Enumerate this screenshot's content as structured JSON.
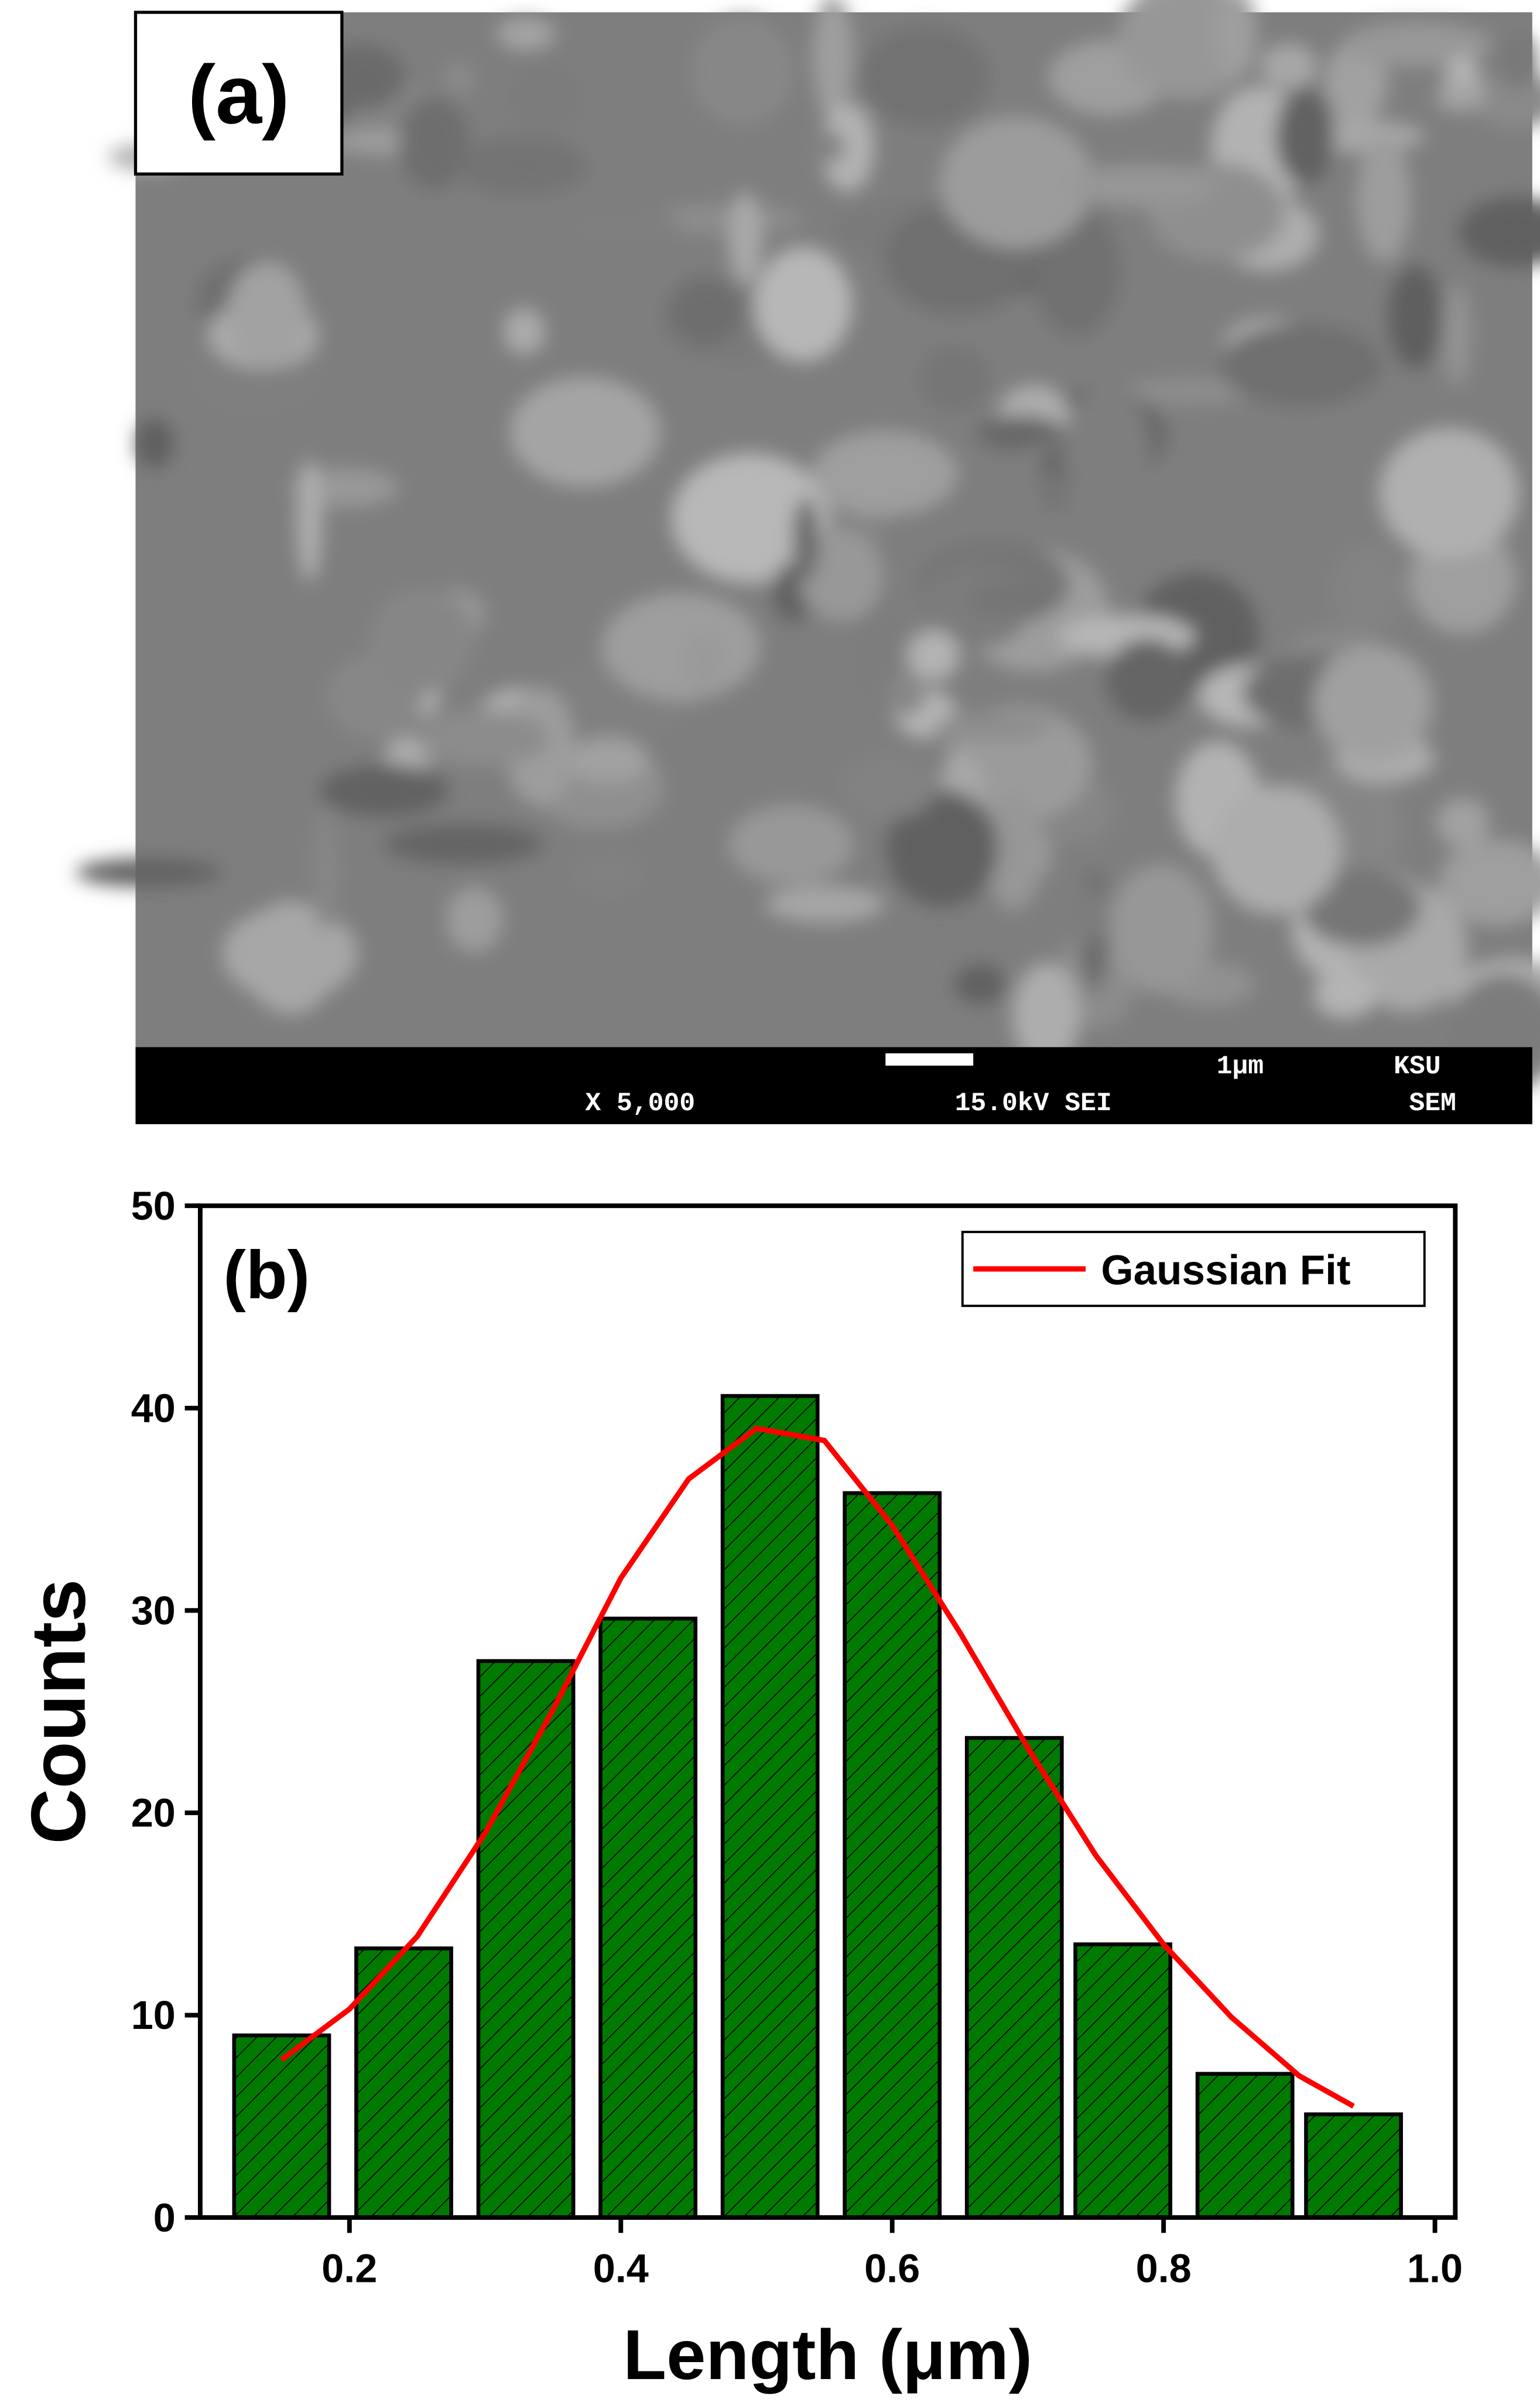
{
  "panel_a": {
    "label": "(a)",
    "scale_bar": "1μm",
    "lab": "KSU",
    "magnification": "X 5,000",
    "voltage": "15.0kV SEI",
    "mode": "SEM"
  },
  "chart_data": {
    "type": "bar",
    "panel_label": "(b)",
    "xlabel": "Length (μm)",
    "ylabel": "Counts",
    "x": [
      0.15,
      0.24,
      0.33,
      0.42,
      0.51,
      0.6,
      0.69,
      0.77,
      0.86,
      0.94
    ],
    "values": [
      9,
      13.3,
      27.5,
      29.6,
      40.6,
      35.8,
      23.7,
      13.5,
      7.1,
      5.1
    ],
    "color": "#007a00",
    "hatch": true,
    "fit": {
      "name": "Gaussian Fit",
      "color": "#ff0000",
      "x": [
        0.15,
        0.2,
        0.25,
        0.3,
        0.35,
        0.4,
        0.45,
        0.5,
        0.55,
        0.6,
        0.65,
        0.7,
        0.75,
        0.8,
        0.85,
        0.9,
        0.94
      ],
      "values": [
        7.8,
        10.3,
        13.9,
        19,
        25.1,
        31.6,
        36.5,
        39,
        38.4,
        34.2,
        28.9,
        23.2,
        17.9,
        13.5,
        9.9,
        7,
        5.5
      ]
    },
    "xlim": [
      0.09,
      1.015
    ],
    "ylim": [
      0,
      50
    ],
    "xticks": [
      0.2,
      0.4,
      0.6,
      0.8,
      {
        "value": 1,
        "label": "1.0"
      }
    ],
    "yticks": [
      0,
      10,
      20,
      30,
      40,
      50
    ],
    "legend": "upper right"
  }
}
